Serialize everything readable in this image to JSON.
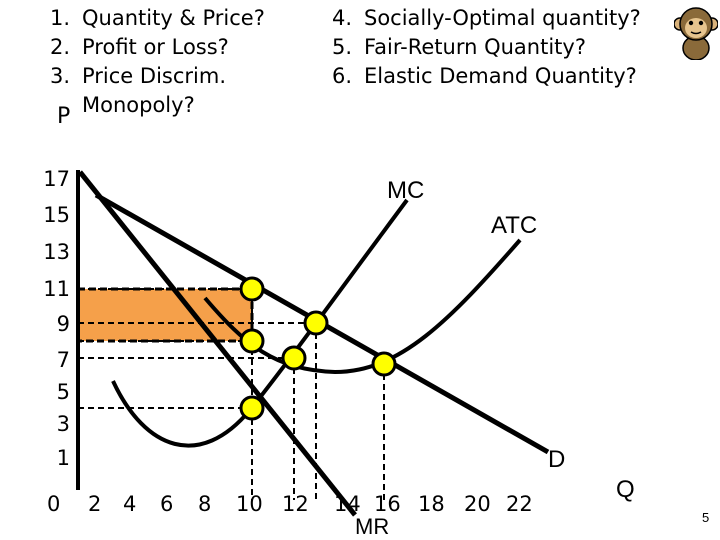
{
  "questions_left": [
    {
      "num": "1.",
      "text": "Quantity & Price?"
    },
    {
      "num": "2.",
      "text": "Profit or Loss?"
    },
    {
      "num": "3.",
      "text": "Price Discrim."
    },
    {
      "num": "",
      "text": "Monopoly?"
    }
  ],
  "questions_right": [
    {
      "num": "4.",
      "text": "Socially-Optimal quantity?"
    },
    {
      "num": "5.",
      "text": "Fair-Return Quantity?"
    },
    {
      "num": "6.",
      "text": "Elastic Demand Quantity?"
    }
  ],
  "axis": {
    "y_label": "P",
    "x_label": "Q",
    "origin": "0",
    "y_ticks": [
      "17",
      "15",
      "13",
      "11",
      "9",
      "7",
      "5",
      "3",
      "1"
    ],
    "x_ticks": [
      "2",
      "4",
      "6",
      "8",
      "10",
      "12",
      "14",
      "16",
      "18",
      "20",
      "22"
    ]
  },
  "curve_labels": {
    "mc": "MC",
    "atc": "ATC",
    "demand": "D",
    "mr": "MR"
  },
  "icon": "monkey-icon",
  "slide_number": "5",
  "colors": {
    "profit_box": "#f5a04a",
    "points": "#ffff00"
  }
}
